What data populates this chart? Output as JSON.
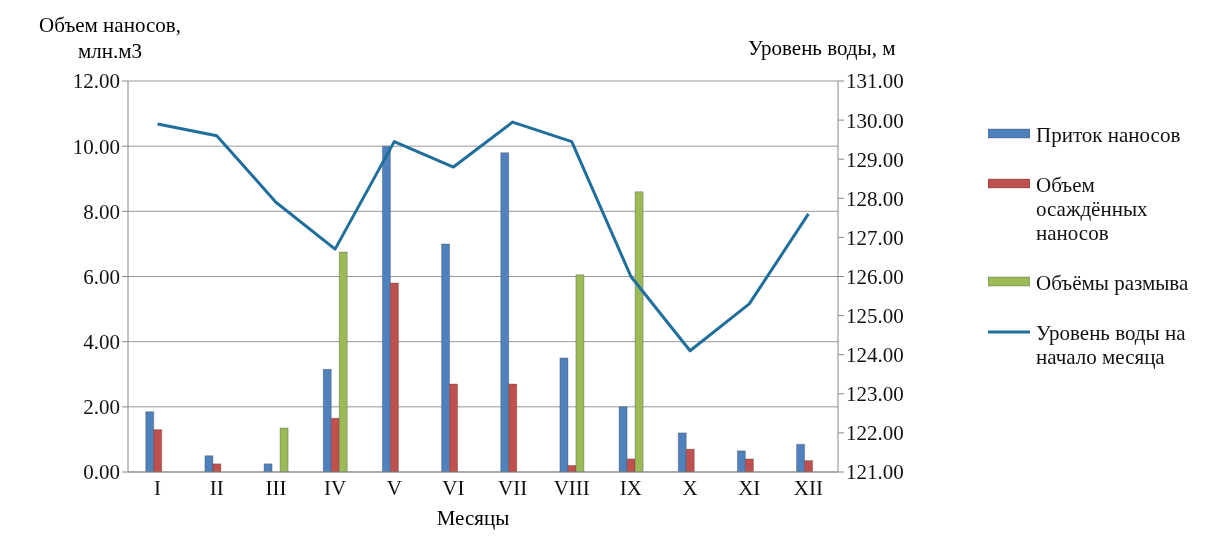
{
  "chart_data": {
    "type": "bar",
    "xlabel": "Месяцы",
    "ylabel": "Объем наносов, млн.м3",
    "y2label": "Уровень воды, м",
    "categories": [
      "I",
      "II",
      "III",
      "IV",
      "V",
      "VI",
      "VII",
      "VIII",
      "IX",
      "X",
      "XI",
      "XII"
    ],
    "series": [
      {
        "name": "Приток наносов",
        "color": "#4f81bd",
        "values": [
          1.85,
          0.5,
          0.25,
          3.15,
          10.0,
          7.0,
          9.8,
          3.5,
          2.0,
          1.2,
          0.65,
          0.85
        ]
      },
      {
        "name": "Объем осаждённых наносов",
        "color": "#c0504d",
        "values": [
          1.3,
          0.25,
          null,
          1.65,
          5.8,
          2.7,
          2.7,
          0.2,
          0.4,
          0.7,
          0.4,
          0.35
        ]
      },
      {
        "name": "Объёмы размыва",
        "color": "#9bbb59",
        "values": [
          null,
          null,
          1.35,
          6.75,
          null,
          null,
          null,
          6.05,
          8.6,
          null,
          null,
          null
        ]
      },
      {
        "name": "Уровень воды на начало месяца",
        "color": "#1f6e9c",
        "type": "line",
        "axis": "y2",
        "values": [
          129.9,
          129.6,
          127.9,
          126.7,
          129.45,
          128.8,
          129.95,
          129.45,
          126.0,
          124.1,
          125.3,
          127.6
        ]
      }
    ],
    "ylim": [
      0,
      12
    ],
    "yticks": [
      {
        "value": 0,
        "label": "0.00"
      },
      {
        "value": 2,
        "label": "2.00"
      },
      {
        "value": 4,
        "label": "4.00"
      },
      {
        "value": 6,
        "label": "6.00"
      },
      {
        "value": 8,
        "label": "8.00"
      },
      {
        "value": 10,
        "label": "10.00"
      },
      {
        "value": 12,
        "label": "12.00"
      }
    ],
    "y2lim": [
      121,
      131
    ],
    "y2ticks": [
      {
        "value": 121,
        "label": "121.00"
      },
      {
        "value": 122,
        "label": "122.00"
      },
      {
        "value": 123,
        "label": "123.00"
      },
      {
        "value": 124,
        "label": "124.00"
      },
      {
        "value": 125,
        "label": "125.00"
      },
      {
        "value": 126,
        "label": "126.00"
      },
      {
        "value": 127,
        "label": "127.00"
      },
      {
        "value": 128,
        "label": "128.00"
      },
      {
        "value": 129,
        "label": "129.00"
      },
      {
        "value": 130,
        "label": "130.00"
      },
      {
        "value": 131,
        "label": "131.00"
      }
    ],
    "grid": "y",
    "legend": "right",
    "marker": "none",
    "line_style": "solid"
  }
}
